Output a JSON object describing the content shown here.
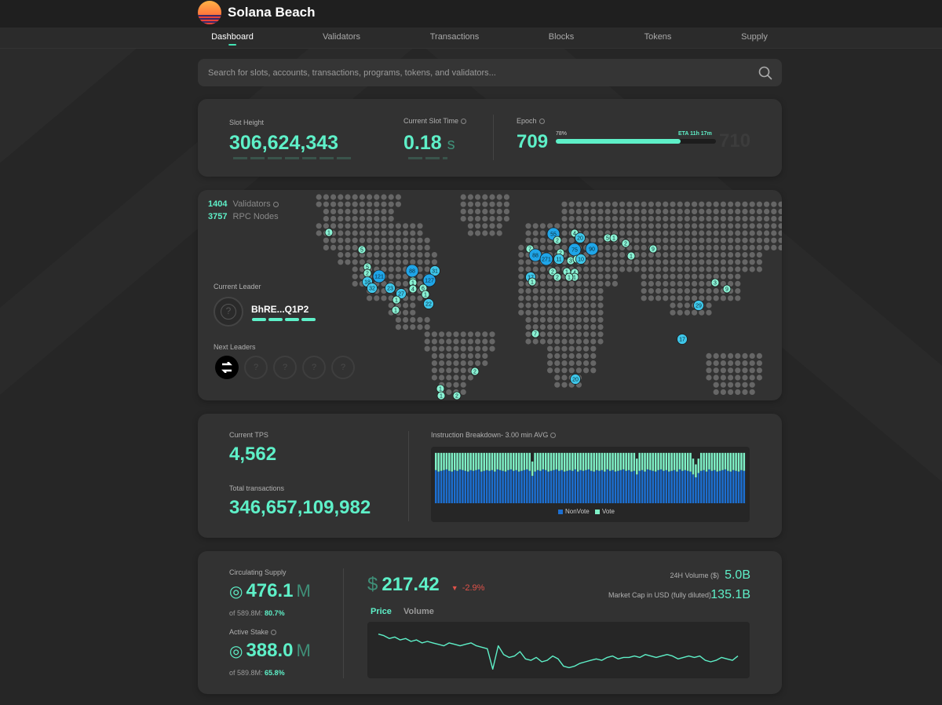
{
  "header": {
    "brand": "Solana Beach"
  },
  "nav": {
    "items": [
      {
        "label": "Dashboard",
        "active": true
      },
      {
        "label": "Validators"
      },
      {
        "label": "Transactions"
      },
      {
        "label": "Blocks"
      },
      {
        "label": "Tokens"
      },
      {
        "label": "Supply"
      }
    ]
  },
  "search": {
    "placeholder": "Search for slots, accounts, transactions, programs, tokens, and validators..."
  },
  "stats": {
    "slot_height_label": "Slot Height",
    "slot_height": "306,624,343",
    "slot_time_label": "Current Slot Time",
    "slot_time_value": "0.18",
    "slot_time_unit": "s",
    "epoch_label": "Epoch",
    "epoch": "709",
    "epoch_progress_label": "78%",
    "epoch_progress": 0.78,
    "epoch_eta": "ETA 11h 17m",
    "epoch_next": "710"
  },
  "map": {
    "validators_count": "1404",
    "validators_label": "Validators",
    "rpc_count": "3757",
    "rpc_label": "RPC Nodes",
    "current_leader_label": "Current Leader",
    "current_leader": "BhRE...Q1P2",
    "next_leaders_label": "Next Leaders",
    "clusters": [
      "1",
      "5",
      "88",
      "31",
      "5",
      "2",
      "121",
      "1",
      "18",
      "32",
      "23",
      "27",
      "1",
      "127",
      "4",
      "6",
      "1",
      "1",
      "22",
      "1",
      "55",
      "2",
      "4",
      "20",
      "7",
      "88",
      "2",
      "75",
      "90",
      "5",
      "1",
      "2",
      "9",
      "1",
      "2",
      "271",
      "11",
      "3",
      "4",
      "10",
      "1",
      "17",
      "1",
      "2",
      "4",
      "1",
      "1",
      "7",
      "3",
      "9",
      "29",
      "17",
      "20",
      "1",
      "2",
      "2",
      "1"
    ]
  },
  "tps": {
    "current_label": "Current TPS",
    "current_value": "4,562",
    "total_label": "Total transactions",
    "total_value": "346,657,109,982",
    "breakdown_label": "Instruction Breakdown- 3.00 min AVG",
    "legend_nonvote": "NonVote",
    "legend_vote": "Vote",
    "color_nonvote": "#1c6fd1",
    "color_vote": "#7ef0c6"
  },
  "supply": {
    "circulating_label": "Circulating Supply",
    "circulating_value": "476.1",
    "circulating_unit": "M",
    "circulating_of": "of 589.8M:",
    "circulating_pct": "80.7%",
    "stake_label": "Active Stake",
    "stake_value": "388.0",
    "stake_unit": "M",
    "stake_of": "of 589.8M:",
    "stake_pct": "65.8%"
  },
  "market": {
    "currency": "$",
    "price": "217.42",
    "change": "-2.9%",
    "volume_label": "24H Volume ($)",
    "volume_value": "5.0B",
    "mcap_label": "Market Cap in USD (fully diluted)",
    "mcap_value": "135.1B",
    "tab_price": "Price",
    "tab_volume": "Volume",
    "color_up": "#5ef0c8",
    "color_down": "#e0524a"
  },
  "chart_data": [
    {
      "type": "bar",
      "title": "Instruction Breakdown- 3.00 min AVG",
      "series": [
        {
          "name": "NonVote",
          "values": [
            46,
            44,
            45,
            46,
            47,
            45,
            44,
            46,
            45,
            47,
            46,
            45,
            44,
            46,
            45,
            46,
            47,
            44,
            45,
            46,
            45,
            46,
            44,
            47,
            46,
            45,
            44,
            46,
            47,
            45,
            46,
            44,
            45,
            46,
            47,
            45,
            38,
            44,
            46,
            45,
            47,
            46,
            44,
            45,
            46,
            47,
            45,
            46,
            44,
            45,
            46,
            45,
            47,
            44,
            46,
            45,
            46,
            47,
            45,
            44,
            46,
            45,
            46,
            44,
            47,
            45,
            46,
            44,
            45,
            46,
            47,
            45,
            46,
            44,
            45,
            40,
            45,
            46,
            44,
            47,
            46,
            45,
            44,
            46,
            47,
            45,
            46,
            44,
            45,
            46,
            44,
            47,
            45,
            46,
            45,
            44,
            40,
            36,
            42,
            45,
            46,
            44,
            47,
            45,
            46,
            44,
            45,
            46,
            47,
            45,
            44,
            46,
            45,
            44,
            46,
            45
          ]
        },
        {
          "name": "Vote",
          "values": [
            24,
            26,
            25,
            24,
            23,
            25,
            26,
            24,
            25,
            23,
            24,
            25,
            26,
            24,
            25,
            24,
            23,
            26,
            25,
            24,
            25,
            24,
            26,
            23,
            24,
            25,
            26,
            24,
            23,
            25,
            24,
            26,
            25,
            24,
            23,
            25,
            20,
            26,
            24,
            25,
            23,
            24,
            26,
            25,
            24,
            23,
            25,
            24,
            26,
            25,
            24,
            25,
            23,
            26,
            24,
            25,
            24,
            23,
            25,
            26,
            24,
            25,
            24,
            26,
            23,
            25,
            24,
            26,
            25,
            24,
            23,
            25,
            24,
            26,
            25,
            22,
            25,
            24,
            26,
            23,
            24,
            25,
            26,
            24,
            23,
            25,
            24,
            26,
            25,
            24,
            26,
            23,
            25,
            24,
            25,
            26,
            22,
            18,
            20,
            25,
            24,
            26,
            23,
            25,
            24,
            26,
            25,
            24,
            23,
            25,
            26,
            24,
            25,
            26,
            24,
            25
          ]
        }
      ]
    },
    {
      "type": "line",
      "title": "Price",
      "series": [
        {
          "name": "Price",
          "values": [
            228,
            227,
            225,
            226,
            224,
            225,
            223,
            224,
            222,
            223,
            222,
            221,
            220,
            222,
            221,
            220,
            221,
            222,
            220,
            219,
            218,
            204,
            220,
            214,
            212,
            213,
            216,
            211,
            210,
            212,
            209,
            210,
            213,
            211,
            206,
            205,
            206,
            208,
            209,
            210,
            211,
            210,
            212,
            213,
            211,
            212,
            212,
            213,
            212,
            214,
            213,
            212,
            213,
            214,
            213,
            211,
            212,
            213,
            212,
            213,
            210,
            209,
            210,
            212,
            211,
            210,
            213
          ]
        }
      ]
    }
  ]
}
